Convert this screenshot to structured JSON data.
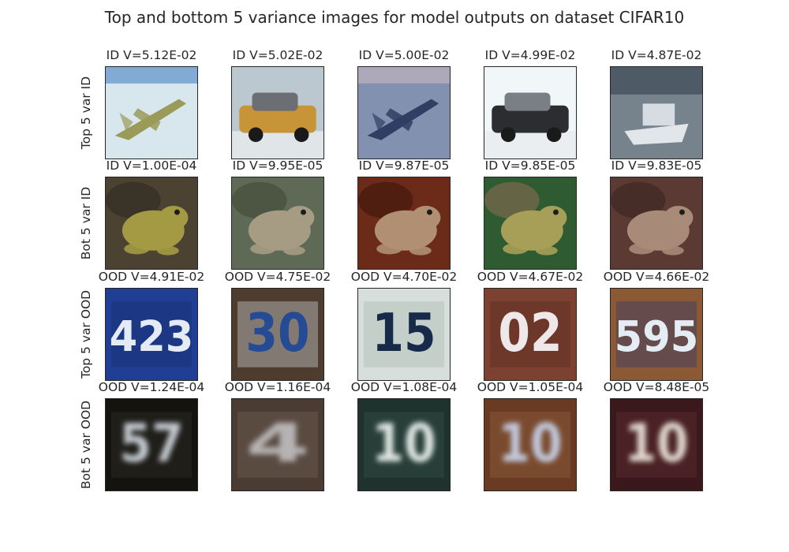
{
  "title": "Top and bottom 5 variance images for model outputs on dataset CIFAR10",
  "rows": [
    {
      "label": "Top 5 var ID",
      "cells": [
        {
          "caption": "ID V=5.12E-02",
          "subject": "airplane",
          "bg": "#d8e6ee",
          "fg": "#9a9b58",
          "accent": "#2a6fb8"
        },
        {
          "caption": "ID V=5.02E-02",
          "subject": "car",
          "bg": "#bcc8cf",
          "fg": "#c79438",
          "accent": "#6b6f74"
        },
        {
          "caption": "ID V=5.00E-02",
          "subject": "airplane",
          "bg": "#8391b0",
          "fg": "#2f3e63",
          "accent": "#d8c0c4"
        },
        {
          "caption": "ID V=4.99E-02",
          "subject": "car",
          "bg": "#f1f6f8",
          "fg": "#2b2d31",
          "accent": "#7a7f86"
        },
        {
          "caption": "ID V=4.87E-02",
          "subject": "ship",
          "bg": "#76838c",
          "fg": "#e1e6ea",
          "accent": "#3d4a55"
        }
      ]
    },
    {
      "label": "Bot 5 var ID",
      "cells": [
        {
          "caption": "ID V=1.00E-04",
          "subject": "frog",
          "bg": "#4c4232",
          "fg": "#a39a43",
          "accent": "#2d2a22"
        },
        {
          "caption": "ID V=9.95E-05",
          "subject": "frog",
          "bg": "#5f6a56",
          "fg": "#a59c83",
          "accent": "#3f4a35"
        },
        {
          "caption": "ID V=9.87E-05",
          "subject": "frog",
          "bg": "#6b2b18",
          "fg": "#b08f73",
          "accent": "#3e160c"
        },
        {
          "caption": "ID V=9.85E-05",
          "subject": "frog",
          "bg": "#2e5b32",
          "fg": "#a79f58",
          "accent": "#8b6a50"
        },
        {
          "caption": "ID V=9.83E-05",
          "subject": "frog",
          "bg": "#5b3a34",
          "fg": "#a88a78",
          "accent": "#3b2521"
        }
      ]
    },
    {
      "label": "Top 5 var OOD",
      "cells": [
        {
          "caption": "OOD V=4.91E-02",
          "subject": "digits",
          "text": "423",
          "bg": "#203f94",
          "fg": "#e4ebf4",
          "accent": "#172c68"
        },
        {
          "caption": "OOD V=4.75E-02",
          "subject": "digits",
          "text": "30",
          "bg": "#4e3c2e",
          "fg": "#254b94",
          "accent": "#e6ecf2"
        },
        {
          "caption": "OOD V=4.70E-02",
          "subject": "digits",
          "text": "15",
          "bg": "#d6dfdb",
          "fg": "#172a4a",
          "accent": "#a5b1ad"
        },
        {
          "caption": "OOD V=4.67E-02",
          "subject": "digits",
          "text": "02",
          "bg": "#7c4130",
          "fg": "#efe8ea",
          "accent": "#53281d"
        },
        {
          "caption": "OOD V=4.66E-02",
          "subject": "digits",
          "text": "595",
          "bg": "#8b5a34",
          "fg": "#e4ecf4",
          "accent": "#21327f"
        }
      ]
    },
    {
      "label": "Bot 5 var OOD",
      "cells": [
        {
          "caption": "OOD V=1.24E-04",
          "subject": "digits-blur",
          "text": "57",
          "bg": "#14130f",
          "fg": "#c3c9d0",
          "accent": "#2a2a24"
        },
        {
          "caption": "OOD V=1.16E-04",
          "subject": "digits-blur",
          "text": "4",
          "bg": "#4a3c33",
          "fg": "#b6b3b4",
          "accent": "#6a5a4f"
        },
        {
          "caption": "OOD V=1.08E-04",
          "subject": "digits-blur",
          "text": "10",
          "bg": "#20322d",
          "fg": "#dfe6e2",
          "accent": "#2f4a43"
        },
        {
          "caption": "OOD V=1.05E-04",
          "subject": "digits-blur",
          "text": "10",
          "bg": "#6a3a22",
          "fg": "#c3cbe0",
          "accent": "#8a5a3a"
        },
        {
          "caption": "OOD V=8.48E-05",
          "subject": "digits-blur",
          "text": "10",
          "bg": "#3a181c",
          "fg": "#e0d7ce",
          "accent": "#5a2a2c"
        }
      ]
    }
  ]
}
